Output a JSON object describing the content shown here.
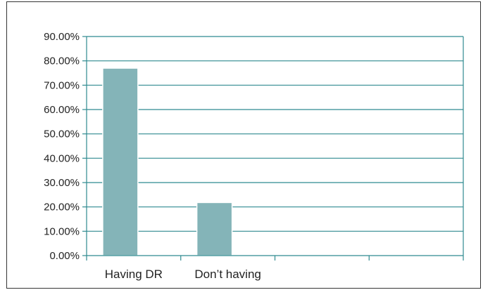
{
  "chart_data": {
    "type": "bar",
    "title": "",
    "xlabel": "",
    "ylabel": "",
    "categories": [
      "Having DR",
      "Don’t having",
      "",
      ""
    ],
    "values": [
      77.0,
      21.8,
      null,
      null
    ],
    "ylim": [
      0,
      90
    ],
    "yticks": [
      "0.00%",
      "10.00%",
      "20.00%",
      "30.00%",
      "40.00%",
      "50.00%",
      "60.00%",
      "70.00%",
      "80.00%",
      "90.00%"
    ],
    "grid": true,
    "legend": "none",
    "colors": {
      "bar_fill": "#84b4b8",
      "grid": "#2f8a90",
      "axis": "#2f8a90",
      "text": "#222222",
      "frame": "#333333"
    }
  }
}
